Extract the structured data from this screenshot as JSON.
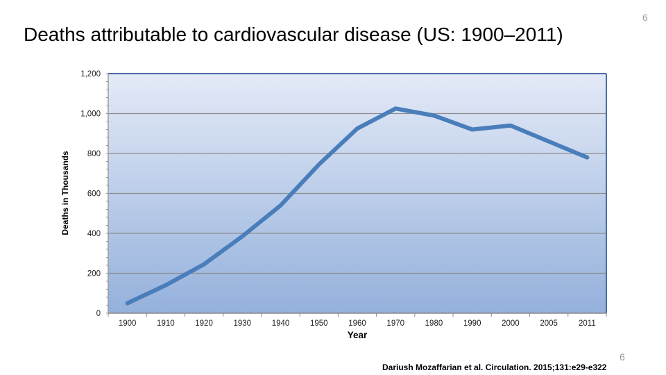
{
  "slide": {
    "title": "Deaths attributable to cardiovascular disease (US: 1900–2011)",
    "page_number_top": "6",
    "page_number_bottom": "6",
    "citation": "Dariush  Mozaffarian et al. Circulation. 2015;131:e29-e322"
  },
  "chart_data": {
    "type": "line",
    "title": "",
    "xlabel": "Year",
    "ylabel": "Deaths in Thousands",
    "categories": [
      "1900",
      "1910",
      "1920",
      "1930",
      "1940",
      "1950",
      "1960",
      "1970",
      "1980",
      "1990",
      "2000",
      "2005",
      "2011"
    ],
    "series": [
      {
        "name": "Deaths",
        "values": [
          50,
          140,
          245,
          385,
          540,
          745,
          925,
          1025,
          990,
          920,
          940,
          860,
          780
        ]
      }
    ],
    "ylim": [
      0,
      1200
    ],
    "yticks": [
      0,
      200,
      400,
      600,
      800,
      1000,
      1200
    ],
    "ytick_labels": [
      "0",
      "200",
      "400",
      "600",
      "800",
      "1,000",
      "1,200"
    ],
    "grid": true,
    "colors": {
      "line": "#4a7ebb",
      "bg_top": "#e4eaf7",
      "bg_bottom": "#94b1dc",
      "grid": "#8c8c8c"
    }
  }
}
